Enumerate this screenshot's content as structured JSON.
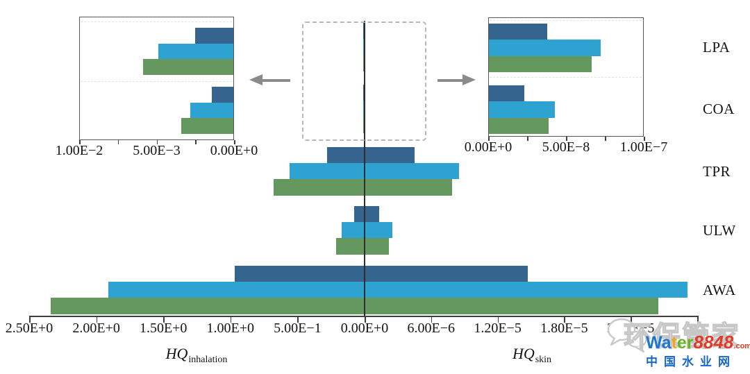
{
  "chart_data": {
    "type": "bar",
    "subtype": "butterfly-horizontal",
    "categories": [
      "LPA",
      "COA",
      "TPR",
      "ULW",
      "AWA"
    ],
    "series_names": [
      "dark-blue",
      "light-blue",
      "green"
    ],
    "colors": [
      "#35648f",
      "#2ea3d2",
      "#64985f"
    ],
    "grid": false,
    "legend": "none",
    "zero_label": "0.00E+0",
    "left_axis": {
      "title_main": "HQ",
      "title_sub": "inhalation",
      "direction": "reversed",
      "max": 2.5,
      "ticks": [
        {
          "label": "2.50E+0",
          "value": 2.5
        },
        {
          "label": "2.00E+0",
          "value": 2.0
        },
        {
          "label": "1.50E+0",
          "value": 1.5
        },
        {
          "label": "1.00E+0",
          "value": 1.0
        },
        {
          "label": "5.00E−1",
          "value": 0.5
        }
      ],
      "series": [
        {
          "name": "dark-blue",
          "values": [
            0.0025,
            0.0014,
            0.28,
            0.08,
            0.97
          ]
        },
        {
          "name": "light-blue",
          "values": [
            0.0049,
            0.0028,
            0.56,
            0.17,
            1.91
          ]
        },
        {
          "name": "green",
          "values": [
            0.0059,
            0.0034,
            0.68,
            0.21,
            2.34
          ]
        }
      ]
    },
    "right_axis": {
      "title_main": "HQ",
      "title_sub": "skin",
      "max": 3e-05,
      "ticks": [
        {
          "label": "6.00E−6",
          "value": 6e-06
        },
        {
          "label": "1.20E−5",
          "value": 1.2e-05
        },
        {
          "label": "1.80E−5",
          "value": 1.8e-05
        },
        {
          "label": "2.40E−5",
          "value": 2.4e-05
        }
      ],
      "series": [
        {
          "name": "dark-blue",
          "values": [
            3.8e-08,
            2.3e-08,
            4.5e-06,
            1.3e-06,
            1.47e-05
          ]
        },
        {
          "name": "light-blue",
          "values": [
            7.3e-08,
            4.3e-08,
            8.5e-06,
            2.5e-06,
            2.91e-05
          ]
        },
        {
          "name": "green",
          "values": [
            6.7e-08,
            3.9e-08,
            7.9e-06,
            2.2e-06,
            2.65e-05
          ]
        }
      ]
    },
    "insets": [
      {
        "id": "inhalation-zoom",
        "position": "top-left",
        "categories": [
          "LPA",
          "COA"
        ],
        "direction": "reversed",
        "max": 0.01,
        "ticks": [
          {
            "label": "1.00E−2",
            "value": 0.01
          },
          {
            "label": "5.00E−3",
            "value": 0.005
          },
          {
            "label": "0.00E+0",
            "value": 0
          }
        ],
        "series": [
          {
            "name": "dark-blue",
            "values": [
              0.0025,
              0.0014
            ]
          },
          {
            "name": "light-blue",
            "values": [
              0.0049,
              0.0028
            ]
          },
          {
            "name": "green",
            "values": [
              0.0059,
              0.0034
            ]
          }
        ]
      },
      {
        "id": "skin-zoom",
        "position": "top-right",
        "categories": [
          "LPA",
          "COA"
        ],
        "direction": "normal",
        "max": 1e-07,
        "ticks": [
          {
            "label": "0.00E+0",
            "value": 0
          },
          {
            "label": "5.00E−8",
            "value": 5e-08
          },
          {
            "label": "1.00E−7",
            "value": 1e-07
          }
        ],
        "series": [
          {
            "name": "dark-blue",
            "values": [
              3.8e-08,
              2.3e-08
            ]
          },
          {
            "name": "light-blue",
            "values": [
              7.3e-08,
              4.3e-08
            ]
          },
          {
            "name": "green",
            "values": [
              6.7e-08,
              3.9e-08
            ]
          }
        ]
      }
    ]
  },
  "watermark": {
    "overlay_text": "环保管家",
    "overlay_color": "#c7c7c7",
    "logo": {
      "segments": [
        {
          "text": "Wa",
          "color": "#1b76cf"
        },
        {
          "text": "t",
          "color": "#f2a51c"
        },
        {
          "text": "er",
          "color": "#67b423"
        },
        {
          "text": "8848",
          "color": "#e23a26"
        }
      ],
      "suffix": {
        "text": ".com",
        "color": "#e23a26"
      },
      "caption": "中国水业网",
      "caption_color": "#1767c9"
    }
  }
}
